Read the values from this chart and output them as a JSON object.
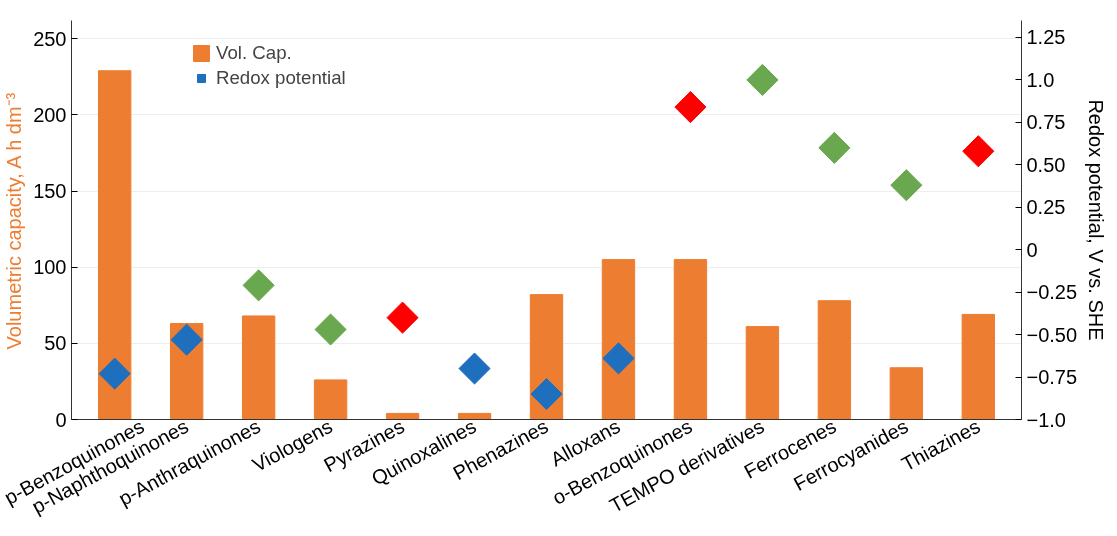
{
  "chart_data": {
    "type": "bar",
    "categories": [
      "p-Benzoquinones",
      "p-Naphthoquinones",
      "p-Anthraquinones",
      "Viologens",
      "Pyrazines",
      "Quinoxalines",
      "Phenazines",
      "Alloxans",
      "o-Benzoquinones",
      "TEMPO derivatives",
      "Ferrocenes",
      "Ferrocyanides",
      "Thiazines"
    ],
    "series": [
      {
        "name": "Vol. Cap.",
        "color": "#ed7d31",
        "values": [
          229,
          63,
          68,
          26,
          4,
          4,
          82,
          105,
          105,
          61,
          78,
          34,
          69
        ]
      },
      {
        "name": "Redox potential",
        "type": "scatter",
        "axis": "y2",
        "colors": [
          "#1f6fbf",
          "#1f6fbf",
          "#6aa84f",
          "#6aa84f",
          "#ff0000",
          "#1f6fbf",
          "#1f6fbf",
          "#1f6fbf",
          "#ff0000",
          "#6aa84f",
          "#6aa84f",
          "#6aa84f",
          "#ff0000"
        ],
        "values": [
          -0.73,
          -0.53,
          -0.21,
          -0.47,
          -0.4,
          -0.7,
          -0.85,
          -0.64,
          0.84,
          1.0,
          0.6,
          0.38,
          0.58
        ]
      }
    ],
    "ylabel": "Volumetric capacity, A h dm⁻³",
    "y2label": "Redox potential, V vs. SHE",
    "ylim": [
      0,
      262
    ],
    "yticks": [
      0,
      50,
      100,
      150,
      200,
      250
    ],
    "y2lim": [
      -1.0,
      1.35
    ],
    "y2ticks": [
      {
        "value": -1.0,
        "label": "−1.0"
      },
      {
        "value": -0.75,
        "label": "−0.75"
      },
      {
        "value": -0.5,
        "label": "−0.50"
      },
      {
        "value": -0.25,
        "label": "−0.25"
      },
      0,
      {
        "value": 0.25,
        "label": "0.25"
      },
      {
        "value": 0.5,
        "label": "0.50"
      },
      {
        "value": 0.75,
        "label": "0.75"
      },
      {
        "value": 1.0,
        "label": "1.0"
      },
      {
        "value": 1.25,
        "label": "1.25"
      }
    ],
    "marker": "diamond",
    "grid": "y",
    "legend": "top left"
  }
}
